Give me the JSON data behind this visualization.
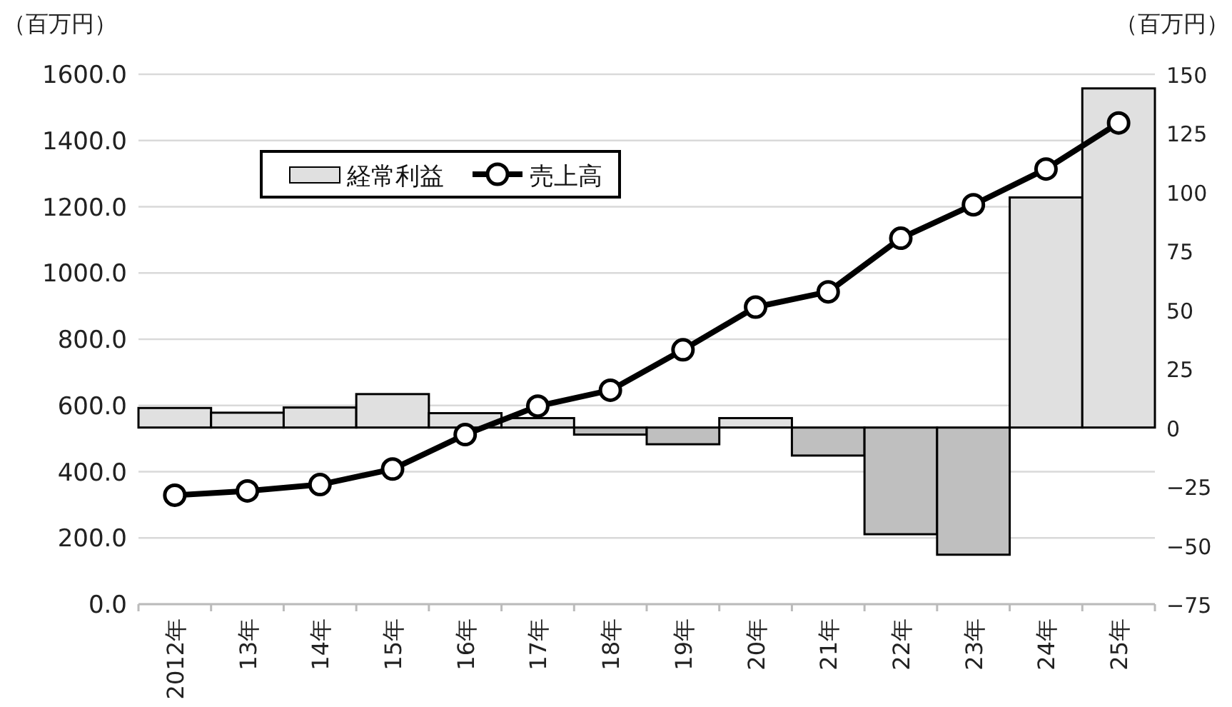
{
  "chart_data": {
    "type": "bar",
    "categories": [
      "2012年",
      "13年",
      "14年",
      "15年",
      "16年",
      "17年",
      "18年",
      "19年",
      "20年",
      "21年",
      "22年",
      "23年",
      "24年",
      "25年"
    ],
    "series": [
      {
        "name": "経常利益",
        "axis": "y2",
        "color": "#e0e0e0",
        "colors": [
          "#e0e0e0",
          "#e0e0e0",
          "#e0e0e0",
          "#e0e0e0",
          "#e0e0e0",
          "#e0e0e0",
          "#bfbfbf",
          "#bfbfbf",
          "#e0e0e0",
          "#bfbfbf",
          "#bfbfbf",
          "#bfbfbf",
          "#e0e0e0",
          "#e0e0e0"
        ],
        "values": [
          8.3,
          6.3,
          8.5,
          14.2,
          6.1,
          4.0,
          -3.0,
          -7.1,
          4.0,
          -11.9,
          -45.3,
          -54.0,
          97.7,
          144.0
        ]
      },
      {
        "name": "売上高",
        "type": "line",
        "axis": "y",
        "color": "#000000",
        "marker": "circle",
        "values": [
          329,
          342,
          361,
          408,
          512,
          598,
          646,
          768,
          897,
          943,
          1105,
          1206,
          1314,
          1453
        ]
      }
    ],
    "ylabel": "（百万円）",
    "y2label": "（百万円）",
    "ylim": [
      0,
      1600
    ],
    "yticks": [
      {
        "value": 0,
        "label": "0.0"
      },
      {
        "value": 200,
        "label": "200.0"
      },
      {
        "value": 400,
        "label": "400.0"
      },
      {
        "value": 600,
        "label": "600.0"
      },
      {
        "value": 800,
        "label": "800.0"
      },
      {
        "value": 1000,
        "label": "1000.0"
      },
      {
        "value": 1200,
        "label": "1200.0"
      },
      {
        "value": 1400,
        "label": "1400.0"
      },
      {
        "value": 1600,
        "label": "1600.0"
      }
    ],
    "y2lim": [
      -75,
      150
    ],
    "y2ticks": [
      -75,
      -50,
      -25,
      0,
      25,
      50,
      75,
      100,
      125,
      150
    ],
    "grid": "y",
    "legend": "top left"
  }
}
